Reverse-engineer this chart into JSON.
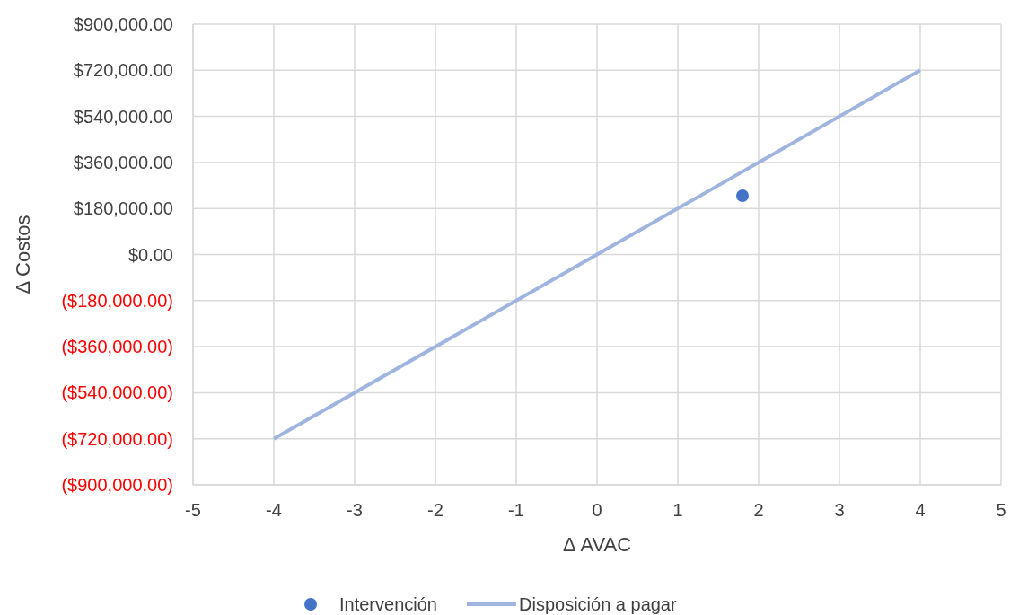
{
  "chart_data": {
    "type": "scatter",
    "xlabel": "Δ AVAC",
    "ylabel": "Δ Costos",
    "xlim": [
      -5,
      5
    ],
    "xticks": [
      -5,
      -4,
      -3,
      -2,
      -1,
      0,
      1,
      2,
      3,
      4,
      5
    ],
    "ylim": [
      -900000,
      900000
    ],
    "yticks": [
      {
        "value": -900000,
        "label": "($900,000.00)"
      },
      {
        "value": -720000,
        "label": "($720,000.00)"
      },
      {
        "value": -540000,
        "label": "($540,000.00)"
      },
      {
        "value": -360000,
        "label": "($360,000.00)"
      },
      {
        "value": -180000,
        "label": "($180,000.00)"
      },
      {
        "value": 0,
        "label": "$0.00"
      },
      {
        "value": 180000,
        "label": "$180,000.00"
      },
      {
        "value": 360000,
        "label": "$360,000.00"
      },
      {
        "value": 540000,
        "label": "$540,000.00"
      },
      {
        "value": 720000,
        "label": "$720,000.00"
      },
      {
        "value": 900000,
        "label": "$900,000.00"
      }
    ],
    "grid": true,
    "legend": "bottom",
    "series": [
      {
        "name": "Intervención",
        "color": "#4472c4",
        "marker": "circle",
        "x": [
          1.8
        ],
        "values": [
          230000
        ]
      },
      {
        "name": "Disposición a pagar",
        "type": "line",
        "color": "#a0b4e0",
        "line_style": "solid",
        "x": [
          -4,
          4
        ],
        "values": [
          -720000,
          720000
        ]
      }
    ]
  }
}
